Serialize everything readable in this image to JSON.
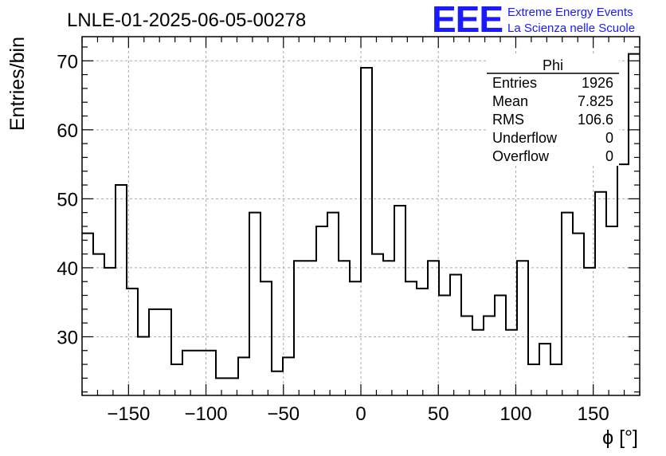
{
  "chart_data": {
    "type": "bar",
    "style": "step-histogram",
    "title": "LNLE-01-2025-06-05-00278",
    "xlabel": "ϕ [°]",
    "ylabel": "Entries/bin",
    "xlim": [
      -180,
      180
    ],
    "ylim": [
      21.5,
      73.5
    ],
    "grid": true,
    "bin_width": 7.2,
    "x_ticks": [
      -150,
      -100,
      -50,
      0,
      50,
      100,
      150
    ],
    "x_tick_labels": [
      "−150",
      "−100",
      "−50",
      "0",
      "50",
      "100",
      "150"
    ],
    "y_ticks": [
      30,
      40,
      50,
      60,
      70
    ],
    "y_tick_labels": [
      "30",
      "40",
      "50",
      "60",
      "70"
    ],
    "values": [
      45,
      42,
      40,
      52,
      37,
      30,
      34,
      34,
      26,
      28,
      28,
      28,
      24,
      24,
      27,
      48,
      38,
      25,
      27,
      41,
      41,
      46,
      48,
      41,
      38,
      69,
      42,
      41,
      49,
      38,
      37,
      41,
      36,
      39,
      33,
      31,
      33,
      36,
      31,
      41,
      26,
      29,
      26,
      48,
      45,
      40,
      51,
      46,
      55,
      71
    ],
    "stats": {
      "title": "Phi",
      "rows": [
        {
          "label": "Entries",
          "value": "1926"
        },
        {
          "label": "Mean",
          "value": "7.825"
        },
        {
          "label": "RMS",
          "value": "106.6"
        },
        {
          "label": "Underflow",
          "value": "0"
        },
        {
          "label": "Overflow",
          "value": "0"
        }
      ]
    }
  },
  "logo": {
    "mark": "EEE",
    "line1": "Extreme Energy Events",
    "line2": "La Scienza nelle Scuole",
    "color": "#1a1aff"
  }
}
